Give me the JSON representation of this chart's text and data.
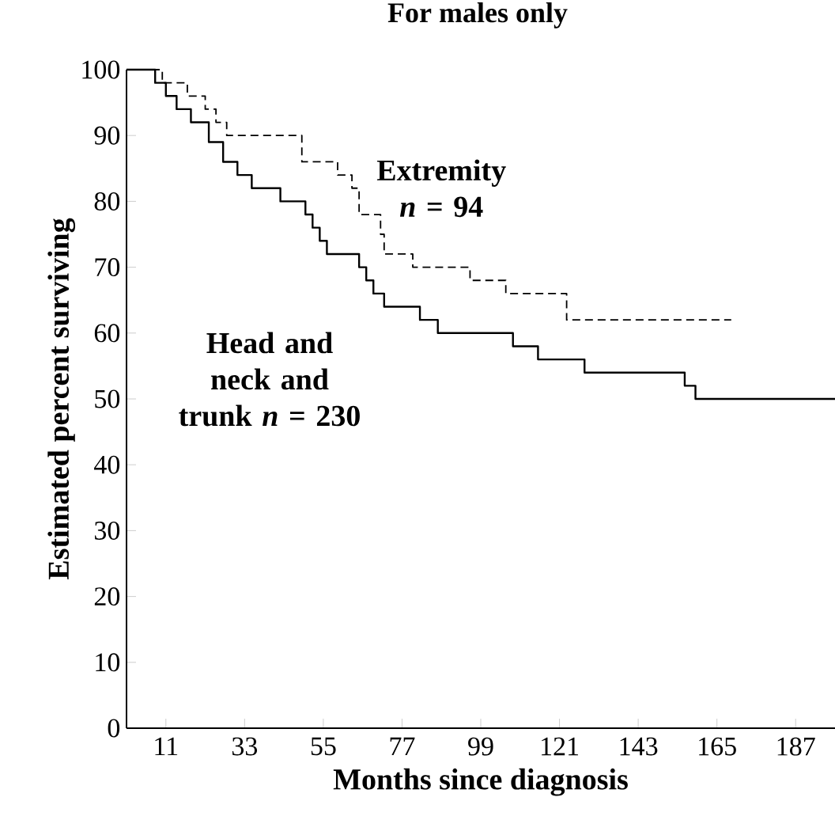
{
  "chart_data": {
    "type": "step",
    "title": "For males only",
    "xlabel": "Months since diagnosis",
    "ylabel": "Estimated percent surviving",
    "xlim": [
      0,
      198
    ],
    "xticks": [
      11,
      33,
      55,
      77,
      99,
      121,
      143,
      165,
      187
    ],
    "ylim": [
      0,
      100
    ],
    "yticks": [
      0,
      10,
      20,
      30,
      40,
      50,
      60,
      70,
      80,
      90,
      100
    ],
    "grid": false,
    "series": [
      {
        "name": "Extremity *n* = 94",
        "color": "#000000",
        "line_style": "dashed",
        "x": [
          0,
          10,
          17,
          22,
          25,
          28,
          49,
          59,
          63,
          65,
          71,
          72,
          80,
          96,
          106,
          123,
          169
        ],
        "values": [
          100,
          98,
          96,
          94,
          92,
          90,
          86,
          84,
          82,
          78,
          75,
          72,
          70,
          68,
          66,
          62,
          62
        ]
      },
      {
        "name": "Head and neck and trunk *n* = 230",
        "color": "#000000",
        "line_style": "solid",
        "x": [
          0,
          8,
          11,
          14,
          18,
          23,
          27,
          31,
          35,
          43,
          50,
          52,
          54,
          56,
          65,
          67,
          69,
          72,
          82,
          87,
          108,
          115,
          128,
          156,
          159,
          198
        ],
        "values": [
          100,
          98,
          96,
          94,
          92,
          89,
          86,
          84,
          82,
          80,
          78,
          76,
          74,
          72,
          70,
          68,
          66,
          64,
          62,
          60,
          58,
          56,
          54,
          52,
          50,
          50
        ]
      }
    ]
  }
}
